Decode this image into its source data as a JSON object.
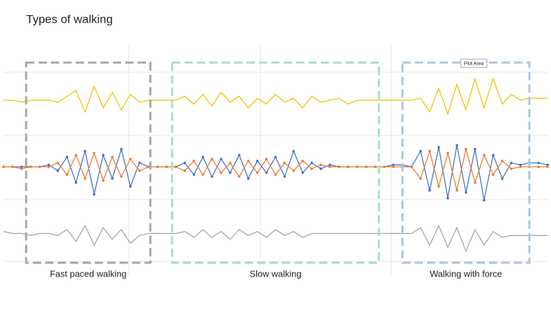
{
  "chart_data": {
    "type": "line",
    "title": "Types of walking",
    "x": [
      0,
      1,
      2,
      3,
      4,
      5,
      6,
      7,
      8,
      9,
      10,
      11,
      12,
      13,
      14,
      15,
      16,
      17,
      18,
      19,
      20,
      21,
      22,
      23,
      24,
      25,
      26,
      27,
      28,
      29,
      30,
      31,
      32,
      33,
      34,
      35,
      36,
      37,
      38,
      39,
      40,
      41,
      42,
      43,
      44,
      45,
      46,
      47,
      48,
      49,
      50,
      51,
      52,
      53,
      54,
      55,
      56,
      57,
      58,
      59,
      60
    ],
    "xlim": [
      0,
      60
    ],
    "ylim": [
      0,
      100
    ],
    "grid": true,
    "series": [
      {
        "color": "#f2c200",
        "markers": false,
        "values": [
          84,
          84,
          83,
          84,
          84,
          84,
          83,
          86,
          89,
          78,
          91,
          80,
          88,
          79,
          87,
          83,
          84,
          84,
          84,
          84,
          86,
          82,
          87,
          81,
          88,
          83,
          86,
          80,
          85,
          82,
          87,
          83,
          85,
          80,
          86,
          83,
          84,
          85,
          82,
          84,
          84,
          84,
          84,
          84,
          84,
          84,
          85,
          78,
          90,
          77,
          92,
          79,
          95,
          80,
          95,
          82,
          87,
          84,
          85,
          85,
          85
        ]
      },
      {
        "color": "#4472c4",
        "markers": true,
        "values": [
          50,
          50,
          50,
          50,
          50,
          51,
          48,
          55,
          42,
          58,
          36,
          56,
          44,
          59,
          40,
          52,
          50,
          50,
          50,
          50,
          52,
          46,
          55,
          45,
          54,
          47,
          56,
          44,
          53,
          47,
          55,
          45,
          58,
          47,
          52,
          49,
          51,
          50,
          50,
          50,
          50,
          50,
          50,
          51,
          51,
          50,
          58,
          38,
          60,
          34,
          61,
          37,
          59,
          33,
          56,
          44,
          52,
          51,
          52,
          52,
          51
        ]
      },
      {
        "color": "#ed7d31",
        "markers": true,
        "values": [
          50,
          50,
          49,
          50,
          50,
          50,
          52,
          46,
          56,
          44,
          57,
          43,
          55,
          45,
          54,
          48,
          50,
          50,
          50,
          50,
          48,
          53,
          46,
          54,
          47,
          52,
          45,
          53,
          47,
          54,
          46,
          52,
          48,
          53,
          49,
          51,
          50,
          50,
          50,
          50,
          50,
          50,
          50,
          50,
          50,
          50,
          44,
          58,
          40,
          57,
          38,
          59,
          42,
          56,
          46,
          53,
          49,
          50,
          50,
          50,
          50
        ]
      },
      {
        "color": "#a5a5a5",
        "markers": false,
        "values": [
          17,
          16,
          16,
          15,
          16,
          16,
          15,
          18,
          12,
          20,
          10,
          19,
          13,
          18,
          11,
          15,
          16,
          16,
          16,
          16,
          17,
          14,
          18,
          14,
          17,
          13,
          18,
          15,
          17,
          14,
          18,
          15,
          17,
          14,
          16,
          16,
          16,
          16,
          16,
          16,
          16,
          16,
          16,
          16,
          16,
          16,
          19,
          10,
          20,
          9,
          19,
          7,
          18,
          10,
          17,
          14,
          15,
          15,
          15,
          15,
          15
        ]
      }
    ],
    "regions": [
      {
        "label": "Fast paced walking",
        "start": 2.5,
        "end": 16.2,
        "color": "#a6a6a6"
      },
      {
        "label": "Slow walking",
        "start": 18.6,
        "end": 41.4,
        "color": "#a8dcc6"
      },
      {
        "label": "Walking with force",
        "start": 44,
        "end": 58,
        "color": "#adc6dc"
      }
    ],
    "tooltip": "Plot Area"
  }
}
